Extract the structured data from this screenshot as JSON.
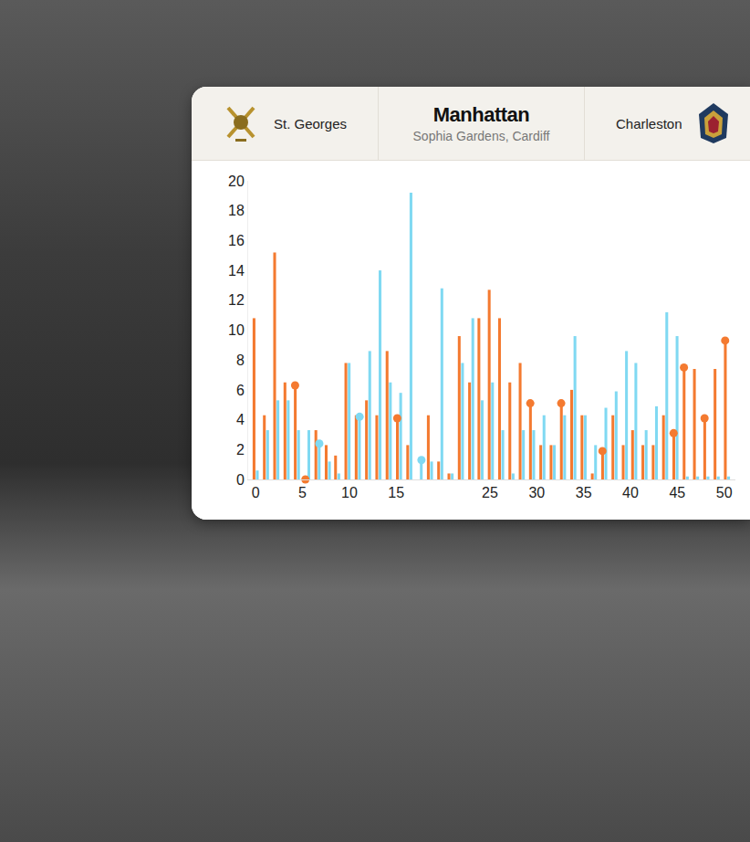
{
  "header": {
    "home": "St. Georges",
    "title": "Manhattan",
    "venue": "Sophia Gardens, Cardiff",
    "away": "Charleston"
  },
  "chart_data": {
    "type": "bar",
    "x": [
      0,
      1.1,
      2.2,
      3.3,
      4.4,
      5.5,
      6.6,
      7.7,
      8.7,
      9.8,
      10.9,
      12.0,
      13.1,
      14.2,
      15.3,
      16.4,
      17.5,
      18.6,
      19.7,
      20.8,
      21.9,
      23.0,
      24.0,
      25.1,
      26.2,
      27.3,
      28.4,
      29.5,
      30.6,
      31.7,
      32.8,
      33.9,
      35.0,
      36.1,
      37.2,
      38.3,
      39.4,
      40.4,
      41.5,
      42.6,
      43.7,
      44.8,
      45.9,
      47.0,
      48.1,
      49.2,
      50.3
    ],
    "series": [
      {
        "color": "#f47a30",
        "marker": "circle",
        "values": [
          10.8,
          4.3,
          15.2,
          6.5,
          6.3,
          0,
          3.3,
          2.3,
          1.6,
          7.8,
          4.3,
          5.3,
          4.3,
          8.6,
          4.1,
          2.3,
          0,
          4.3,
          1.2,
          0.4,
          9.6,
          6.5,
          10.8,
          12.7,
          10.8,
          6.5,
          7.8,
          5.1,
          2.3,
          2.3,
          5.1,
          6.0,
          4.3,
          0.4,
          1.9,
          4.3,
          2.3,
          3.3,
          2.3,
          2.3,
          4.3,
          3.1,
          7.5,
          7.4,
          4.1,
          7.4,
          9.3
        ],
        "wickets": [
          0,
          0,
          0,
          0,
          1,
          1,
          0,
          0,
          0,
          0,
          0,
          0,
          0,
          0,
          1,
          0,
          0,
          0,
          0,
          0,
          0,
          0,
          0,
          0,
          0,
          0,
          0,
          1,
          0,
          0,
          1,
          0,
          0,
          0,
          1,
          0,
          0,
          0,
          0,
          0,
          0,
          1,
          1,
          0,
          1,
          0,
          1
        ]
      },
      {
        "color": "#80d9f2",
        "marker": "circle",
        "values": [
          0.6,
          3.3,
          5.3,
          5.3,
          3.3,
          3.3,
          2.4,
          1.2,
          0.4,
          7.8,
          4.2,
          8.6,
          14.0,
          6.5,
          5.8,
          19.2,
          1.3,
          1.2,
          12.8,
          0.4,
          7.8,
          10.8,
          5.3,
          6.5,
          3.3,
          0.4,
          3.3,
          3.3,
          4.3,
          2.3,
          4.3,
          9.6,
          4.3,
          2.3,
          4.8,
          5.9,
          8.6,
          7.8,
          3.3,
          4.9,
          11.2,
          9.6,
          0.2,
          0.2,
          0.2,
          0.2,
          0.2
        ],
        "wickets": [
          0,
          0,
          0,
          0,
          0,
          0,
          1,
          0,
          0,
          0,
          1,
          0,
          0,
          0,
          0,
          0,
          1,
          0,
          0,
          0,
          0,
          0,
          0,
          0,
          0,
          0,
          0,
          0,
          0,
          0,
          0,
          0,
          0,
          0,
          0,
          0,
          0,
          0,
          0,
          0,
          0,
          0,
          0,
          0,
          0,
          0,
          0
        ]
      }
    ],
    "xlim": [
      -0.8,
      51.2
    ],
    "xticks": [
      0,
      5,
      10,
      15,
      25,
      30,
      35,
      40,
      45,
      50
    ],
    "ylim": [
      0,
      20
    ],
    "yticks": [
      0,
      2,
      4,
      6,
      8,
      10,
      12,
      14,
      16,
      18,
      20
    ],
    "grid": false
  }
}
